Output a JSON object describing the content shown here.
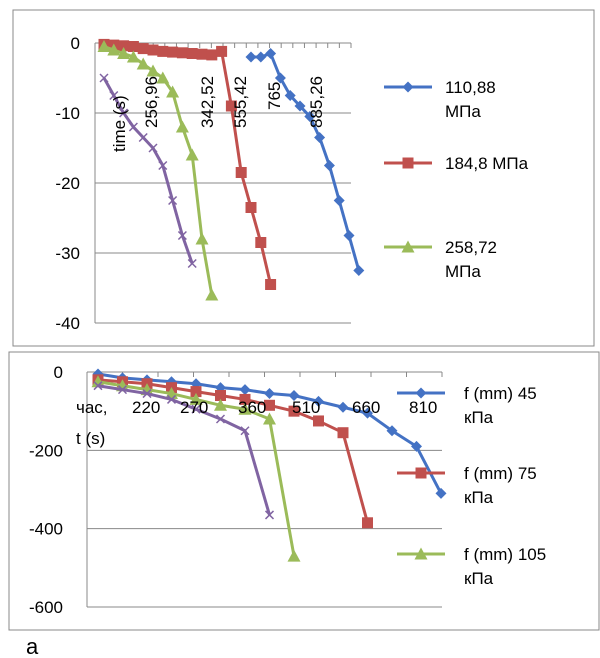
{
  "caption": "a",
  "chart_data": [
    {
      "type": "line",
      "categories": [
        "",
        "256,96",
        "",
        "342,52",
        "",
        "555,42",
        "",
        "765",
        "",
        "885,26",
        ""
      ],
      "xlabel": "time (s)",
      "ylim": [
        -40,
        0
      ],
      "yticks": [
        "0",
        "-10",
        "-20",
        "-30",
        "-40"
      ],
      "grid": true,
      "legend": "right",
      "series": [
        {
          "name": "110,88 МПа",
          "color": "#4472C4",
          "marker": "diamond",
          "x": [
            15,
            16,
            17,
            18,
            19,
            20,
            21,
            22,
            23,
            24,
            25,
            26
          ],
          "y": [
            -2,
            -2,
            -1.5,
            -5,
            -7.5,
            -9,
            -10.5,
            -13.5,
            -17.5,
            -22.5,
            -27.5,
            -32.5
          ]
        },
        {
          "name": "184,8 МПа",
          "color": "#C0504D",
          "marker": "square",
          "x": [
            0,
            1,
            2,
            3,
            4,
            5,
            6,
            7,
            8,
            9,
            10,
            11,
            12,
            13,
            14,
            15,
            16,
            17
          ],
          "y": [
            -0.2,
            -0.3,
            -0.4,
            -0.5,
            -0.8,
            -1.0,
            -1.2,
            -1.3,
            -1.4,
            -1.5,
            -1.6,
            -1.7,
            -1.2,
            -9,
            -18.5,
            -23.5,
            -28.5,
            -34.5
          ]
        },
        {
          "name": "258,72 МПа",
          "color": "#9BBB59",
          "marker": "triangle",
          "x": [
            0,
            1,
            2,
            3,
            4,
            5,
            6,
            7,
            8,
            9,
            10,
            11
          ],
          "y": [
            -0.5,
            -1,
            -1.5,
            -2,
            -3,
            -4,
            -5,
            -7,
            -12,
            -16,
            -28,
            -36
          ]
        },
        {
          "name": "",
          "color": "#8064A2",
          "marker": "x",
          "x": [
            0,
            1,
            2,
            3,
            4,
            5,
            6,
            7,
            8,
            9
          ],
          "y": [
            -5,
            -7.5,
            -10,
            -12,
            -13.5,
            -15,
            -17.5,
            -22.5,
            -27.5,
            -31.5
          ]
        }
      ]
    },
    {
      "type": "line",
      "categories": [
        "час,",
        "220",
        "270",
        "360",
        "510",
        "660",
        "810",
        ""
      ],
      "xlabel": "t  (s)",
      "ylim": [
        -600,
        0
      ],
      "yticks": [
        "0",
        "-200",
        "-400",
        "-600"
      ],
      "grid": true,
      "legend": "right",
      "series": [
        {
          "name": "f (mm) 45 кПа",
          "color": "#4472C4",
          "marker": "diamond",
          "x": [
            0,
            0.5,
            1,
            1.5,
            2,
            2.5,
            3,
            3.5,
            4,
            4.5,
            5,
            5.5,
            6,
            6.5,
            7
          ],
          "y": [
            -5,
            -15,
            -20,
            -25,
            -30,
            -40,
            -45,
            -55,
            -60,
            -75,
            -90,
            -105,
            -150,
            -190,
            -310
          ]
        },
        {
          "name": "f (mm) 75 кПа",
          "color": "#C0504D",
          "marker": "square",
          "x": [
            0,
            0.5,
            1,
            1.5,
            2,
            2.5,
            3,
            3.5,
            4,
            4.5,
            5,
            5.5
          ],
          "y": [
            -20,
            -25,
            -30,
            -40,
            -50,
            -60,
            -70,
            -85,
            -100,
            -125,
            -155,
            -385
          ]
        },
        {
          "name": "f (mm) 105 кПа",
          "color": "#9BBB59",
          "marker": "triangle",
          "x": [
            0,
            0.5,
            1,
            1.5,
            2,
            2.5,
            3,
            3.5,
            4
          ],
          "y": [
            -25,
            -35,
            -45,
            -55,
            -70,
            -85,
            -95,
            -120,
            -470
          ]
        },
        {
          "name": "",
          "color": "#8064A2",
          "marker": "x",
          "x": [
            0,
            0.5,
            1,
            1.5,
            2,
            2.5,
            3,
            3.5
          ],
          "y": [
            -35,
            -45,
            -55,
            -70,
            -95,
            -120,
            -150,
            -365
          ]
        }
      ]
    }
  ]
}
